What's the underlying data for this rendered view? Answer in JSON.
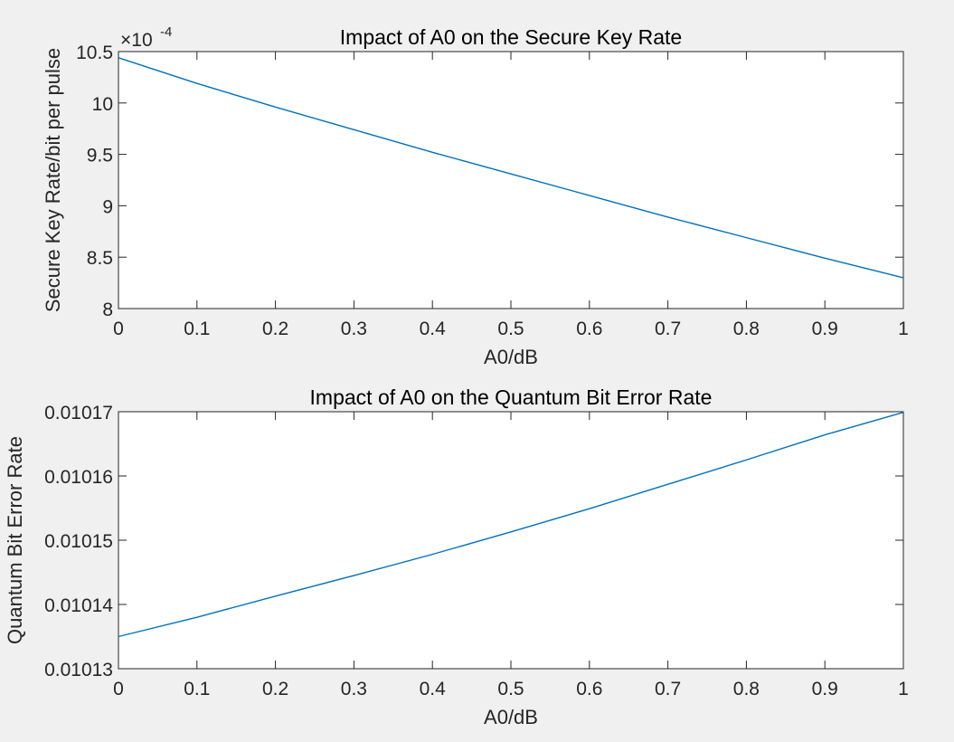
{
  "figure": {
    "background": "#f0f0f0",
    "axes_color": "#262626",
    "line_color": "#0072bd"
  },
  "chart_data": [
    {
      "type": "line",
      "title": "Impact of A0 on the Secure Key Rate",
      "xlabel": "A0/dB",
      "ylabel": "Secure Key Rate/bit per pulse",
      "xlim": [
        0,
        1
      ],
      "ylim": [
        8,
        10.5
      ],
      "y_exponent_base": "×10",
      "y_exponent_power": "-4",
      "y_scale_factor": 0.0001,
      "x_ticks": [
        0,
        0.1,
        0.2,
        0.3,
        0.4,
        0.5,
        0.6,
        0.7,
        0.8,
        0.9,
        1
      ],
      "x_tick_labels": [
        "0",
        "0.1",
        "0.2",
        "0.3",
        "0.4",
        "0.5",
        "0.6",
        "0.7",
        "0.8",
        "0.9",
        "1"
      ],
      "y_ticks": [
        8,
        8.5,
        9,
        9.5,
        10,
        10.5
      ],
      "y_tick_labels": [
        "8",
        "8.5",
        "9",
        "9.5",
        "10",
        "10.5"
      ],
      "grid": false,
      "series": [
        {
          "x": [
            0,
            0.1,
            0.2,
            0.3,
            0.4,
            0.5,
            0.6,
            0.7,
            0.8,
            0.9,
            1
          ],
          "y": [
            10.44,
            10.19,
            9.96,
            9.74,
            9.52,
            9.31,
            9.1,
            8.89,
            8.69,
            8.49,
            8.3
          ]
        }
      ]
    },
    {
      "type": "line",
      "title": "Impact of A0 on the Quantum Bit Error Rate",
      "xlabel": "A0/dB",
      "ylabel": "Quantum Bit Error Rate",
      "xlim": [
        0,
        1
      ],
      "ylim": [
        0.01013,
        0.01017
      ],
      "x_ticks": [
        0,
        0.1,
        0.2,
        0.3,
        0.4,
        0.5,
        0.6,
        0.7,
        0.8,
        0.9,
        1
      ],
      "x_tick_labels": [
        "0",
        "0.1",
        "0.2",
        "0.3",
        "0.4",
        "0.5",
        "0.6",
        "0.7",
        "0.8",
        "0.9",
        "1"
      ],
      "y_ticks": [
        0.01013,
        0.01014,
        0.01015,
        0.01016,
        0.01017
      ],
      "y_tick_labels": [
        "0.01013",
        "0.01014",
        "0.01015",
        "0.01016",
        "0.01017"
      ],
      "grid": false,
      "series": [
        {
          "x": [
            0,
            0.1,
            0.2,
            0.3,
            0.4,
            0.5,
            0.6,
            0.7,
            0.8,
            0.9,
            1
          ],
          "y": [
            0.010135,
            0.010138,
            0.0101413,
            0.0101445,
            0.0101478,
            0.0101513,
            0.0101549,
            0.0101587,
            0.0101625,
            0.0101664,
            0.0101699
          ]
        }
      ]
    }
  ]
}
